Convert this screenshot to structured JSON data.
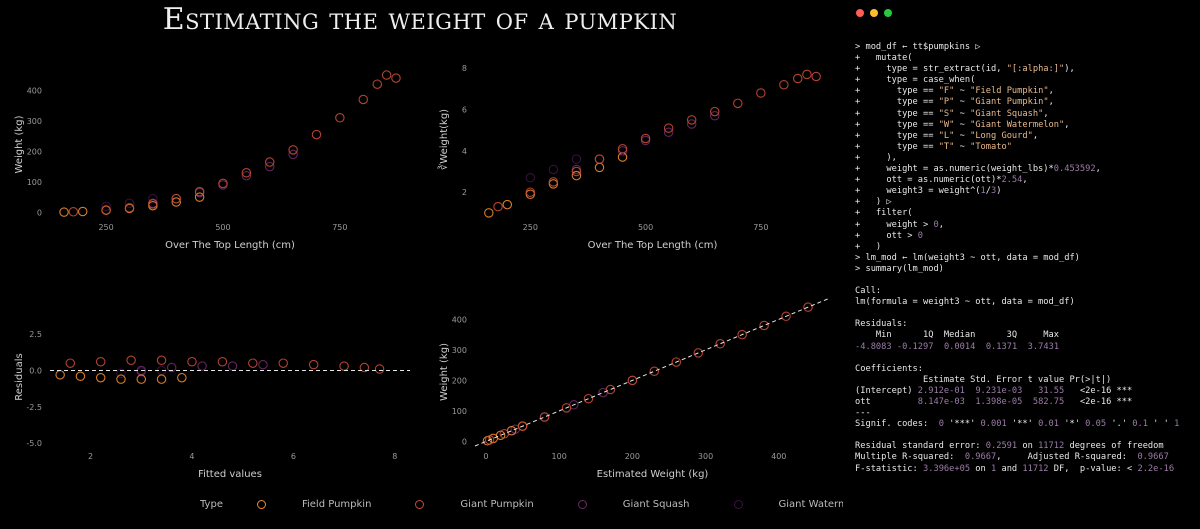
{
  "title": "Estimating the weight of a pumpkin",
  "colors": {
    "background": "#000000",
    "field_pumpkin": "#f08a2c",
    "giant_pumpkin": "#c54a34",
    "giant_squash": "#6b2a66",
    "giant_watermelon": "#3a1440",
    "highlight_purple": "#a27fb0",
    "string_orange": "#e8b98c"
  },
  "window_buttons": [
    {
      "name": "close",
      "color": "#ff5f56"
    },
    {
      "name": "minimize",
      "color": "#ffbd2e"
    },
    {
      "name": "zoom",
      "color": "#27c93f"
    }
  ],
  "legend": {
    "title": "Type",
    "items": [
      "Field Pumpkin",
      "Giant Pumpkin",
      "Giant Squash",
      "Giant Watermelon"
    ]
  },
  "chart_data": [
    {
      "type": "scatter",
      "xlabel": "Over The Top Length (cm)",
      "ylabel": "Weight (kg)",
      "xlim": [
        130,
        900
      ],
      "ylim": [
        -15,
        460
      ],
      "xticks": [
        250,
        500,
        750
      ],
      "yticks": [
        0,
        100,
        200,
        300,
        400
      ],
      "series": [
        {
          "name": "Giant Pumpkin",
          "x": [
            180,
            250,
            300,
            350,
            400,
            450,
            500,
            550,
            600,
            650,
            700,
            750,
            800,
            830,
            850,
            870
          ],
          "y": [
            2,
            8,
            15,
            28,
            45,
            68,
            95,
            130,
            165,
            205,
            255,
            310,
            370,
            420,
            450,
            440
          ]
        },
        {
          "name": "Field Pumpkin",
          "x": [
            160,
            200,
            250,
            300,
            350,
            400,
            450
          ],
          "y": [
            1,
            3,
            7,
            13,
            22,
            34,
            50
          ]
        },
        {
          "name": "Giant Squash",
          "x": [
            350,
            400,
            450,
            500,
            550,
            600,
            650
          ],
          "y": [
            30,
            45,
            65,
            90,
            120,
            150,
            190
          ]
        },
        {
          "name": "Giant Watermelon",
          "x": [
            250,
            300,
            350
          ],
          "y": [
            20,
            30,
            45
          ]
        }
      ]
    },
    {
      "type": "scatter",
      "xlabel": "Over The Top Length (cm)",
      "ylabel": "∛Weight(kg)",
      "xlim": [
        130,
        900
      ],
      "ylim": [
        0.8,
        8.3
      ],
      "xticks": [
        250,
        500,
        750
      ],
      "yticks": [
        2,
        4,
        6,
        8
      ],
      "series": [
        {
          "name": "Giant Pumpkin",
          "x": [
            180,
            250,
            300,
            350,
            400,
            450,
            500,
            550,
            600,
            650,
            700,
            750,
            800,
            830,
            850,
            870
          ],
          "y": [
            1.3,
            2.0,
            2.5,
            3.0,
            3.6,
            4.1,
            4.6,
            5.1,
            5.5,
            5.9,
            6.3,
            6.8,
            7.2,
            7.5,
            7.7,
            7.6
          ]
        },
        {
          "name": "Field Pumpkin",
          "x": [
            160,
            200,
            250,
            300,
            350,
            400,
            450
          ],
          "y": [
            1.0,
            1.4,
            1.9,
            2.4,
            2.8,
            3.2,
            3.7
          ]
        },
        {
          "name": "Giant Squash",
          "x": [
            350,
            400,
            450,
            500,
            550,
            600,
            650
          ],
          "y": [
            3.1,
            3.6,
            4.0,
            4.5,
            4.9,
            5.3,
            5.7
          ]
        },
        {
          "name": "Giant Watermelon",
          "x": [
            250,
            300,
            350
          ],
          "y": [
            2.7,
            3.1,
            3.6
          ]
        }
      ]
    },
    {
      "type": "scatter",
      "xlabel": "Fitted values",
      "ylabel": "Residuals",
      "xlim": [
        1.2,
        8.3
      ],
      "ylim": [
        -5.2,
        4.3
      ],
      "xticks": [
        2,
        4,
        6,
        8
      ],
      "yticks": [
        -5.0,
        -2.5,
        0.0,
        2.5
      ],
      "reference_line": 0,
      "series": [
        {
          "name": "Giant Pumpkin",
          "x": [
            1.6,
            2.2,
            2.8,
            3.4,
            4.0,
            4.6,
            5.2,
            5.8,
            6.4,
            7.0,
            7.4,
            7.7
          ],
          "y": [
            0.5,
            0.6,
            0.7,
            0.7,
            0.6,
            0.6,
            0.5,
            0.5,
            0.4,
            0.3,
            0.2,
            0.1
          ]
        },
        {
          "name": "Field Pumpkin",
          "x": [
            1.4,
            1.8,
            2.2,
            2.6,
            3.0,
            3.4,
            3.8
          ],
          "y": [
            -0.3,
            -0.4,
            -0.5,
            -0.6,
            -0.6,
            -0.6,
            -0.5
          ]
        },
        {
          "name": "Giant Squash",
          "x": [
            3.0,
            3.6,
            4.2,
            4.8,
            5.4
          ],
          "y": [
            0.0,
            0.2,
            0.3,
            0.3,
            0.4
          ]
        },
        {
          "name": "Giant Watermelon",
          "x": [
            2.6,
            3.0,
            3.4
          ],
          "y": [
            -0.2,
            -0.1,
            0.0
          ]
        }
      ]
    },
    {
      "type": "scatter",
      "xlabel": "Estimated Weight (kg)",
      "ylabel": "Weight (kg)",
      "xlim": [
        -15,
        470
      ],
      "ylim": [
        -15,
        470
      ],
      "xticks": [
        0,
        100,
        200,
        300,
        400
      ],
      "yticks": [
        0,
        100,
        200,
        300,
        400
      ],
      "reference_line": "y = x",
      "series": [
        {
          "name": "Giant Pumpkin",
          "x": [
            5,
            25,
            50,
            80,
            110,
            140,
            170,
            200,
            230,
            260,
            290,
            320,
            350,
            380,
            410,
            440
          ],
          "y": [
            5,
            25,
            50,
            80,
            110,
            140,
            170,
            200,
            230,
            260,
            290,
            320,
            350,
            380,
            410,
            440
          ]
        },
        {
          "name": "Field Pumpkin",
          "x": [
            2,
            10,
            20,
            35,
            50
          ],
          "y": [
            2,
            10,
            20,
            35,
            50
          ]
        },
        {
          "name": "Giant Squash",
          "x": [
            40,
            80,
            120,
            160,
            200
          ],
          "y": [
            40,
            80,
            120,
            160,
            200
          ]
        },
        {
          "name": "Giant Watermelon",
          "x": [
            20,
            35,
            50
          ],
          "y": [
            20,
            35,
            50
          ]
        }
      ]
    }
  ],
  "console": {
    "lines": [
      [
        [
          "> mod_df ← tt$pumpkins ▷",
          ""
        ]
      ],
      [
        [
          "+   mutate(",
          ""
        ]
      ],
      [
        [
          "+     type = str_extract(id, ",
          ""
        ],
        [
          "\"[:alpha:]\"",
          "str"
        ],
        [
          "),",
          ""
        ]
      ],
      [
        [
          "+     type = case_when(",
          ""
        ]
      ],
      [
        [
          "+       type == ",
          ""
        ],
        [
          "\"F\"",
          "str"
        ],
        [
          " ~ ",
          ""
        ],
        [
          "\"Field Pumpkin\"",
          "str"
        ],
        [
          ",",
          ""
        ]
      ],
      [
        [
          "+       type == ",
          ""
        ],
        [
          "\"P\"",
          "str"
        ],
        [
          " ~ ",
          ""
        ],
        [
          "\"Giant Pumpkin\"",
          "str"
        ],
        [
          ",",
          ""
        ]
      ],
      [
        [
          "+       type == ",
          ""
        ],
        [
          "\"S\"",
          "str"
        ],
        [
          " ~ ",
          ""
        ],
        [
          "\"Giant Squash\"",
          "str"
        ],
        [
          ",",
          ""
        ]
      ],
      [
        [
          "+       type == ",
          ""
        ],
        [
          "\"W\"",
          "str"
        ],
        [
          " ~ ",
          ""
        ],
        [
          "\"Giant Watermelon\"",
          "str"
        ],
        [
          ",",
          ""
        ]
      ],
      [
        [
          "+       type == ",
          ""
        ],
        [
          "\"L\"",
          "str"
        ],
        [
          " ~ ",
          ""
        ],
        [
          "\"Long Gourd\"",
          "str"
        ],
        [
          ",",
          ""
        ]
      ],
      [
        [
          "+       type == ",
          ""
        ],
        [
          "\"T\"",
          "str"
        ],
        [
          " ~ ",
          ""
        ],
        [
          "\"Tomato\"",
          "str"
        ]
      ],
      [
        [
          "+     ),",
          ""
        ]
      ],
      [
        [
          "+     weight = as.numeric(weight_lbs)*",
          ""
        ],
        [
          "0.453592",
          "hl"
        ],
        [
          ",",
          ""
        ]
      ],
      [
        [
          "+     ott = as.numeric(ott)*",
          ""
        ],
        [
          "2.54",
          "hl"
        ],
        [
          ",",
          ""
        ]
      ],
      [
        [
          "+     weight3 = weight^(",
          ""
        ],
        [
          "1",
          "hl"
        ],
        [
          "/",
          ""
        ],
        [
          "3",
          "hl"
        ],
        [
          ")",
          ""
        ]
      ],
      [
        [
          "+   ) ▷",
          ""
        ]
      ],
      [
        [
          "+   filter(",
          ""
        ]
      ],
      [
        [
          "+     weight > ",
          ""
        ],
        [
          "0",
          "hl"
        ],
        [
          ",",
          ""
        ]
      ],
      [
        [
          "+     ott > ",
          ""
        ],
        [
          "0",
          "hl"
        ]
      ],
      [
        [
          "+   )",
          ""
        ]
      ],
      [
        [
          "> lm_mod ← lm(weight3 ~ ott, data = mod_df)",
          ""
        ]
      ],
      [
        [
          "> summary(lm_mod)",
          ""
        ]
      ],
      [
        [
          "",
          ""
        ]
      ],
      [
        [
          "Call:",
          ""
        ]
      ],
      [
        [
          "lm(formula = weight3 ~ ott, data = mod_df)",
          ""
        ]
      ],
      [
        [
          "",
          ""
        ]
      ],
      [
        [
          "Residuals:",
          ""
        ]
      ],
      [
        [
          "    Min      1Q  Median      3Q     Max",
          ""
        ]
      ],
      [
        [
          "-4.8083",
          "hl"
        ],
        [
          " ",
          ""
        ],
        [
          "-0.1297",
          "hl"
        ],
        [
          "  ",
          ""
        ],
        [
          "0.0014",
          "hl"
        ],
        [
          "  ",
          ""
        ],
        [
          "0.1371",
          "hl"
        ],
        [
          "  ",
          ""
        ],
        [
          "3.7431",
          "hl"
        ]
      ],
      [
        [
          "",
          ""
        ]
      ],
      [
        [
          "Coefficients:",
          ""
        ]
      ],
      [
        [
          "             Estimate Std. Error t value Pr(>|t|)",
          ""
        ]
      ],
      [
        [
          "(Intercept) ",
          ""
        ],
        [
          "2.912e-01",
          "hl"
        ],
        [
          "  ",
          ""
        ],
        [
          "9.231e-03",
          "hl"
        ],
        [
          "   ",
          ""
        ],
        [
          "31.55",
          "hl"
        ],
        [
          "   <2e-16 ***",
          ""
        ]
      ],
      [
        [
          "ott         ",
          ""
        ],
        [
          "8.147e-03",
          "hl"
        ],
        [
          "  ",
          ""
        ],
        [
          "1.398e-05",
          "hl"
        ],
        [
          "  ",
          ""
        ],
        [
          "582.75",
          "hl"
        ],
        [
          "   <2e-16 ***",
          ""
        ]
      ],
      [
        [
          "---",
          ""
        ]
      ],
      [
        [
          "Signif. codes:  ",
          ""
        ],
        [
          "0",
          "hl"
        ],
        [
          " '***' ",
          ""
        ],
        [
          "0.001",
          "hl"
        ],
        [
          " '**' ",
          ""
        ],
        [
          "0.01",
          "hl"
        ],
        [
          " '*' ",
          ""
        ],
        [
          "0.05",
          "hl"
        ],
        [
          " '.' ",
          ""
        ],
        [
          "0.1",
          "hl"
        ],
        [
          " ' ' ",
          ""
        ],
        [
          "1",
          "hl"
        ]
      ],
      [
        [
          "",
          ""
        ]
      ],
      [
        [
          "Residual standard error: ",
          ""
        ],
        [
          "0.2591",
          "hl"
        ],
        [
          " on ",
          ""
        ],
        [
          "11712",
          "hl"
        ],
        [
          " degrees of freedom",
          ""
        ]
      ],
      [
        [
          "Multiple R-squared:  ",
          ""
        ],
        [
          "0.9667",
          "hl"
        ],
        [
          ",     Adjusted R-squared:  ",
          ""
        ],
        [
          "0.9667",
          "hl"
        ]
      ],
      [
        [
          "F-statistic: ",
          ""
        ],
        [
          "3.396e+05",
          "hl"
        ],
        [
          " on ",
          ""
        ],
        [
          "1",
          "hl"
        ],
        [
          " and ",
          ""
        ],
        [
          "11712",
          "hl"
        ],
        [
          " DF,  p-value: < ",
          ""
        ],
        [
          "2.2e-16",
          "hl"
        ]
      ]
    ]
  }
}
